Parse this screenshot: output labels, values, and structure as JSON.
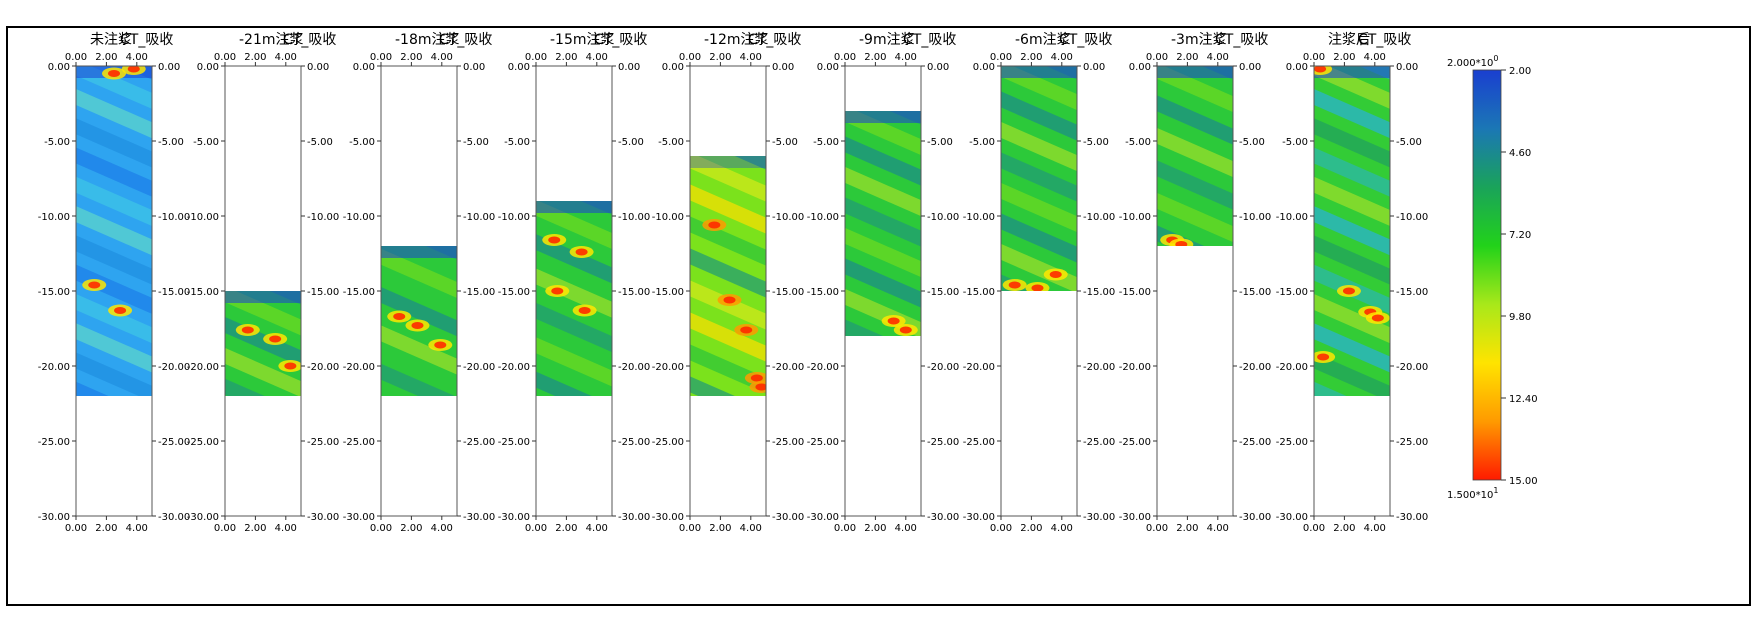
{
  "chart_data": {
    "type": "heatmap",
    "title_suffix": "CT_吸收",
    "x_ticks": [
      "0.00",
      "2.00",
      "4.00"
    ],
    "xlim": [
      0,
      5
    ],
    "y_ticks": [
      "0.00",
      "-5.00",
      "-10.00",
      "-15.00",
      "-20.00",
      "-25.00",
      "-30.00"
    ],
    "ylim": [
      0,
      -30
    ],
    "panels": [
      {
        "name": "未注浆",
        "top": 0,
        "bottom": -22,
        "pattern": "blue",
        "hotspots": [
          [
            2.5,
            -0.5
          ],
          [
            3.8,
            -0.2
          ],
          [
            1.2,
            -14.6
          ],
          [
            2.9,
            -16.3
          ]
        ]
      },
      {
        "name": "-21m注浆",
        "top": -15,
        "bottom": -22,
        "pattern": "green",
        "hotspots": [
          [
            1.5,
            -17.6
          ],
          [
            3.3,
            -18.2
          ],
          [
            4.3,
            -20.0
          ]
        ]
      },
      {
        "name": "-18m注浆",
        "top": -12,
        "bottom": -22,
        "pattern": "green",
        "hotspots": [
          [
            1.2,
            -16.7
          ],
          [
            2.4,
            -17.3
          ],
          [
            3.9,
            -18.6
          ]
        ]
      },
      {
        "name": "-15m注浆",
        "top": -9,
        "bottom": -22,
        "pattern": "green",
        "hotspots": [
          [
            1.2,
            -11.6
          ],
          [
            3.0,
            -12.4
          ],
          [
            1.4,
            -15.0
          ],
          [
            3.2,
            -16.3
          ]
        ]
      },
      {
        "name": "-12m注浆",
        "top": -6,
        "bottom": -22,
        "pattern": "hot",
        "hotspots": [
          [
            1.6,
            -10.6
          ],
          [
            2.6,
            -15.6
          ],
          [
            3.7,
            -17.6
          ],
          [
            4.4,
            -20.8
          ],
          [
            4.7,
            -21.4
          ]
        ]
      },
      {
        "name": "-9m注浆",
        "top": -3,
        "bottom": -18,
        "pattern": "green",
        "hotspots": [
          [
            3.2,
            -17.0
          ],
          [
            4.0,
            -17.6
          ]
        ]
      },
      {
        "name": "-6m注浆",
        "top": 0,
        "bottom": -15,
        "pattern": "green",
        "hotspots": [
          [
            0.9,
            -14.6
          ],
          [
            2.4,
            -14.8
          ],
          [
            3.6,
            -13.9
          ]
        ]
      },
      {
        "name": "-3m注浆",
        "top": 0,
        "bottom": -12,
        "pattern": "green",
        "hotspots": [
          [
            1.0,
            -11.6
          ],
          [
            1.6,
            -11.9
          ]
        ]
      },
      {
        "name": "注浆后",
        "top": 0,
        "bottom": -22,
        "pattern": "mixed",
        "hotspots": [
          [
            0.4,
            -0.2
          ],
          [
            2.3,
            -15.0
          ],
          [
            3.7,
            -16.4
          ],
          [
            4.2,
            -16.8
          ],
          [
            0.6,
            -19.4
          ]
        ]
      }
    ],
    "colorbar": {
      "top_label": "2.000*10",
      "top_exp": "0",
      "bottom_label": "1.500*10",
      "bottom_exp": "1",
      "ticks": [
        "2.00",
        "4.60",
        "7.20",
        "9.80",
        "12.40",
        "15.00"
      ],
      "range": [
        2.0,
        15.0
      ],
      "colors": [
        "#1a3fd0",
        "#1b77b5",
        "#1aa35a",
        "#22d21a",
        "#a8e81a",
        "#ffe400",
        "#ff9a00",
        "#ff1a00"
      ]
    }
  }
}
